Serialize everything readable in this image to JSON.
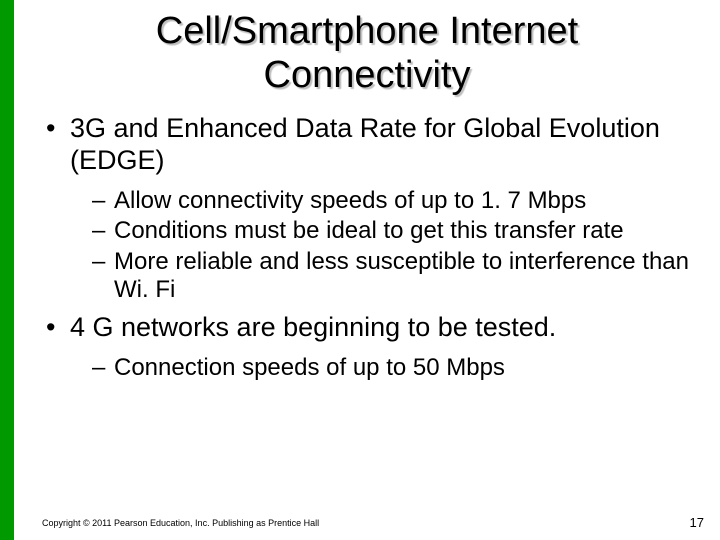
{
  "accent_bar_color": "#009900",
  "background_color": "#ffffff",
  "title": {
    "line1": "Cell/Smartphone Internet",
    "line2": "Connectivity",
    "font_size": 38,
    "text_color": "#000000",
    "shadow_color": "#bfbfbf"
  },
  "bullets": [
    {
      "text": "3G and Enhanced Data Rate for Global Evolution (EDGE)",
      "sub": [
        "Allow connectivity speeds of up to 1. 7 Mbps",
        "Conditions must be ideal to get this transfer rate",
        "More reliable and less susceptible to interference than Wi. Fi"
      ]
    },
    {
      "text": "4 G networks are beginning to be tested.",
      "sub": [
        "Connection speeds of up to 50 Mbps"
      ]
    }
  ],
  "footer_text": "Copyright © 2011 Pearson Education, Inc. Publishing as Prentice Hall",
  "page_number": "17",
  "typography": {
    "l1_font_size": 27,
    "l2_font_size": 24,
    "footer_font_size": 9,
    "pagenum_font_size": 13
  }
}
